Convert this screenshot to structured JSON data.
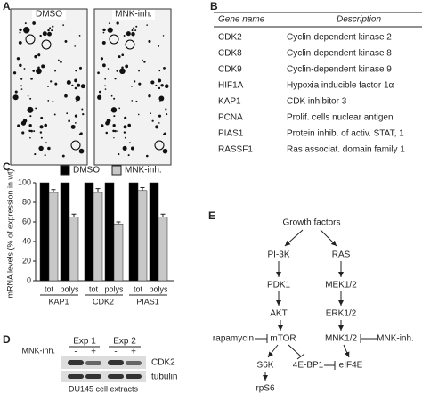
{
  "panel_labels": [
    "A",
    "B",
    "C",
    "D",
    "E"
  ],
  "panel_a": {
    "labels": [
      "DMSO",
      "MNK-inh."
    ]
  },
  "panel_b": {
    "headers": [
      "Gene name",
      "Description"
    ],
    "rows": [
      [
        "CDK2",
        "Cyclin-dependent kinase 2"
      ],
      [
        "CDK8",
        "Cyclin-dependent kinase 8"
      ],
      [
        "CDK9",
        "Cyclin-dependent kinase 9"
      ],
      [
        "HIF1A",
        "Hypoxia inducible factor 1α"
      ],
      [
        "KAP1",
        "CDK inhibitor 3"
      ],
      [
        "PCNA",
        "Prolif. cells nuclear antigen"
      ],
      [
        "PIAS1",
        "Protein inhib. of activ. STAT, 1"
      ],
      [
        "RASSF1",
        "Ras associat. domain family 1"
      ]
    ]
  },
  "chart_data": {
    "type": "bar",
    "y_label": "mRNA levels (% of expression in wt)",
    "categories": [
      "tot",
      "polys",
      "tot",
      "polys",
      "tot",
      "polys"
    ],
    "groups": [
      "KAP1",
      "CDK2",
      "PIAS1"
    ],
    "series": [
      {
        "name": "DMSO",
        "color": "#000000",
        "values": [
          100,
          100,
          100,
          100,
          100,
          100
        ]
      },
      {
        "name": "MNK-inh.",
        "color": "#c8c8c8",
        "values": [
          90,
          65,
          90,
          58,
          92,
          65
        ],
        "errors": [
          3,
          3,
          4,
          2,
          3,
          3
        ]
      }
    ],
    "ylim": [
      0,
      100
    ],
    "yticks": [
      0,
      20,
      40,
      60,
      80,
      100
    ]
  },
  "panel_d": {
    "experiments": [
      "Exp 1",
      "Exp 2"
    ],
    "treatment": "MNK-inh.",
    "signs": [
      "-",
      "+",
      "-",
      "+"
    ],
    "bands": [
      "CDK2",
      "tubulin"
    ],
    "caption": "DU145 cell extracts"
  },
  "panel_e": {
    "nodes": [
      "Growth factors",
      "PI-3K",
      "RAS",
      "PDK1",
      "MEK1/2",
      "AKT",
      "ERK1/2",
      "rapamycin",
      "mTOR",
      "MNK1/2",
      "MNK-inh.",
      "S6K",
      "4E-BP1",
      "eIF4E",
      "rpS6"
    ]
  }
}
